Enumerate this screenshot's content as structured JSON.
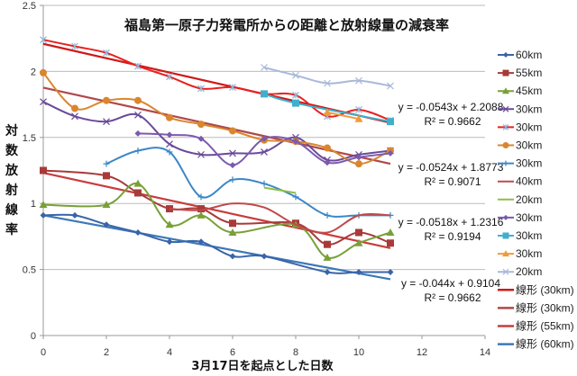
{
  "chart_data": {
    "type": "line",
    "title": "福島第一原子力発電所からの距離と放射線量の減衰率",
    "xlabel": "3月17日を起点とした日数",
    "ylabel": "対数放射線率",
    "xlim": [
      0,
      14
    ],
    "ylim": [
      0,
      2.5
    ],
    "xticks": [
      "0",
      "2",
      "4",
      "6",
      "8",
      "10",
      "12",
      "14"
    ],
    "yticks": [
      "0",
      "0.5",
      "1",
      "1.5",
      "2",
      "2.5"
    ],
    "grid": true,
    "legend_position": "right",
    "series": [
      {
        "name": "60km",
        "color": "#3A64A8",
        "marker": "diamond",
        "x": [
          0,
          1,
          2,
          3,
          4,
          5,
          6,
          7,
          9,
          10,
          11
        ],
        "y": [
          0.91,
          0.91,
          0.84,
          0.78,
          0.71,
          0.71,
          0.6,
          0.6,
          0.48,
          0.48,
          0.48
        ]
      },
      {
        "name": "55km",
        "color": "#A83A3A",
        "marker": "square",
        "x": [
          0,
          2,
          3,
          4,
          5,
          6,
          8,
          9,
          10,
          11
        ],
        "y": [
          1.25,
          1.21,
          1.08,
          0.96,
          0.96,
          0.85,
          0.85,
          0.69,
          0.78,
          0.7
        ]
      },
      {
        "name": "45km",
        "color": "#78A038",
        "marker": "triangle",
        "x": [
          0,
          2,
          3,
          4,
          5,
          6,
          8,
          9,
          10,
          11
        ],
        "y": [
          0.99,
          0.99,
          1.15,
          0.84,
          0.91,
          0.78,
          0.84,
          0.59,
          0.7,
          0.78
        ]
      },
      {
        "name": "30km",
        "color": "#6A4A9A",
        "marker": "x",
        "x": [
          0,
          1,
          2,
          3,
          4,
          5,
          6,
          7,
          8,
          9,
          10,
          11
        ],
        "y": [
          1.77,
          1.66,
          1.62,
          1.67,
          1.45,
          1.37,
          1.38,
          1.39,
          1.5,
          1.33,
          1.37,
          1.4
        ]
      },
      {
        "name": "30km",
        "color": "#E8211E",
        "marker": "star",
        "x": [
          0,
          1,
          2,
          3,
          4,
          5,
          6,
          7,
          8,
          9,
          10,
          11
        ],
        "y": [
          2.24,
          2.19,
          2.14,
          2.04,
          1.96,
          1.87,
          1.88,
          1.83,
          1.82,
          1.66,
          1.71,
          1.63
        ]
      },
      {
        "name": "30km",
        "color": "#D9862E",
        "marker": "circle",
        "x": [
          0,
          1,
          2,
          3,
          4,
          5,
          6,
          7,
          8,
          9,
          10,
          11
        ],
        "y": [
          1.99,
          1.72,
          1.78,
          1.78,
          1.65,
          1.6,
          1.55,
          1.48,
          1.47,
          1.42,
          1.3,
          1.4
        ]
      },
      {
        "name": "30km",
        "color": "#3C86C8",
        "marker": "plus",
        "x": [
          2,
          3,
          4,
          5,
          6,
          7,
          8,
          9,
          10,
          11
        ],
        "y": [
          1.3,
          1.4,
          1.39,
          1.05,
          1.18,
          1.15,
          1.05,
          0.91,
          0.91,
          0.91
        ]
      },
      {
        "name": "40km",
        "color": "#C0484A",
        "marker": "none",
        "x": [
          4,
          5,
          6,
          7,
          8,
          9,
          10,
          11
        ],
        "y": [
          0.96,
          0.95,
          1.0,
          0.97,
          0.84,
          0.78,
          0.91,
          0.91
        ]
      },
      {
        "name": "20km",
        "color": "#8DBE4A",
        "marker": "none",
        "x": [
          7,
          8
        ],
        "y": [
          1.12,
          1.08
        ]
      },
      {
        "name": "30km",
        "color": "#7C5AAE",
        "marker": "diamond",
        "x": [
          3,
          4,
          5,
          6,
          7,
          8,
          9,
          10,
          11
        ],
        "y": [
          1.53,
          1.52,
          1.49,
          1.29,
          1.49,
          1.47,
          1.31,
          1.35,
          1.38
        ]
      },
      {
        "name": "30km",
        "color": "#3FB0CC",
        "marker": "square",
        "x": [
          7,
          8,
          11
        ],
        "y": [
          1.83,
          1.76,
          1.62
        ]
      },
      {
        "name": "30km",
        "color": "#F29A3A",
        "marker": "triangle",
        "x": [
          9,
          10
        ],
        "y": [
          1.69,
          1.64
        ]
      },
      {
        "name": "20km",
        "color": "#A9B8D9",
        "marker": "x",
        "x": [
          7,
          8,
          9,
          10,
          11
        ],
        "y": [
          2.03,
          1.97,
          1.91,
          1.93,
          1.89
        ]
      }
    ],
    "trendlines": [
      {
        "name": "線形 (30km)",
        "color": "#D01818",
        "slope": -0.0543,
        "intercept": 2.2088,
        "x_range": [
          0,
          11
        ],
        "equation": "y = -0.0543x + 2.2088",
        "r2": "R² = 0.9662"
      },
      {
        "name": "線形 (30km)",
        "color": "#B04848",
        "slope": -0.0524,
        "intercept": 1.8773,
        "x_range": [
          0,
          11
        ],
        "equation": "y = -0.0524x + 1.8773",
        "r2": "R² = 0.9071"
      },
      {
        "name": "線形 (55km)",
        "color": "#C83C3C",
        "slope": -0.0518,
        "intercept": 1.2316,
        "x_range": [
          0,
          11
        ],
        "equation": "y = -0.0518x + 1.2316",
        "r2": "R² = 0.9194"
      },
      {
        "name": "線形 (60km)",
        "color": "#3C78B8",
        "slope": -0.044,
        "intercept": 0.9104,
        "x_range": [
          0,
          11
        ],
        "equation": "y = -0.044x + 0.9104",
        "r2": "R² = 0.9662"
      }
    ]
  }
}
